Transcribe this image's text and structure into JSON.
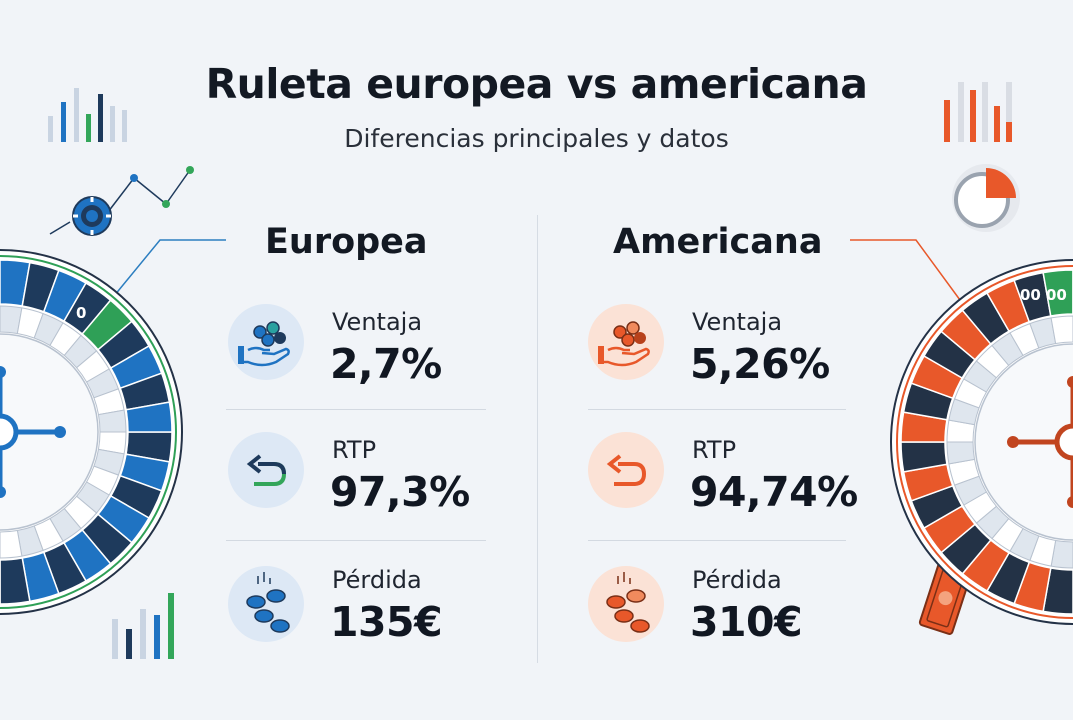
{
  "header": {
    "title": "Ruleta europea vs americana",
    "subtitle": "Diferencias principales y datos"
  },
  "colors": {
    "europe_accent": "#1f73c2",
    "europe_dark": "#1e3a5c",
    "europe_green": "#33a65a",
    "america_accent": "#e8582a",
    "america_dark": "#233246",
    "america_green": "#2fa057"
  },
  "europea": {
    "title": "Europea",
    "stats": [
      {
        "label": "Ventaja",
        "value": "2,7%",
        "icon": "hand-chips-icon"
      },
      {
        "label": "RTP",
        "value": "97,3%",
        "icon": "return-arrow-icon"
      },
      {
        "label": "Pérdida",
        "value": "135€",
        "icon": "falling-coins-icon"
      }
    ],
    "wheel_pocket": "0"
  },
  "americana": {
    "title": "Americana",
    "stats": [
      {
        "label": "Ventaja",
        "value": "5,26%",
        "icon": "hand-chips-icon"
      },
      {
        "label": "RTP",
        "value": "94,74%",
        "icon": "return-arrow-icon"
      },
      {
        "label": "Pérdida",
        "value": "310€",
        "icon": "falling-coins-icon"
      }
    ],
    "wheel_pockets": [
      "00",
      "00"
    ]
  }
}
